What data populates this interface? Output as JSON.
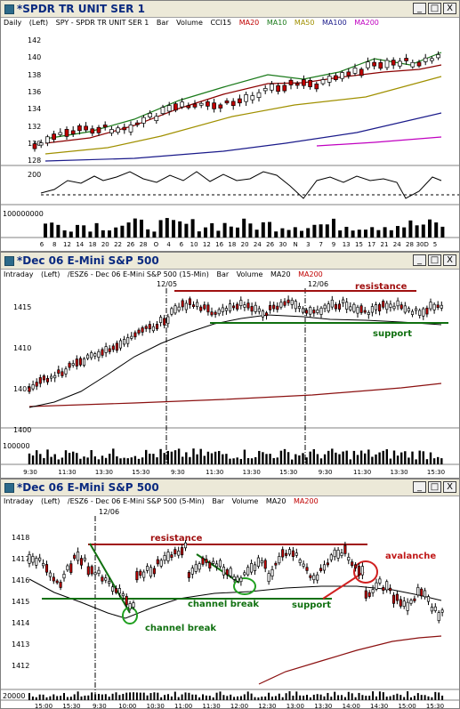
{
  "windows": [
    {
      "title": "*SPDR TR UNIT SER 1",
      "controls": {
        "minimize": "_",
        "maximize": "□",
        "close": "X"
      },
      "header": {
        "interval": "Daily",
        "axis": "(Left)",
        "symbol": "SPY - SPDR TR UNIT SER 1",
        "type": "Bar",
        "volume": "Volume",
        "ind1": "CCI15",
        "ind2": "MA20",
        "ind3": "MA10",
        "ind4": "MA50",
        "ind5": "MA100",
        "ind6": "MA200"
      },
      "price_ticks": [
        "142",
        "140",
        "138",
        "136",
        "134",
        "132",
        "130",
        "128"
      ],
      "cci_ticks": [
        "200"
      ],
      "volume_ticks": [
        "100000000"
      ],
      "date_labels": [
        "6",
        "8",
        "12",
        "14",
        "18",
        "20",
        "22",
        "26",
        "28",
        "O",
        "4",
        "6",
        "10",
        "12",
        "16",
        "18",
        "20",
        "24",
        "26",
        "30",
        "N",
        "3",
        "7",
        "9",
        "13",
        "15",
        "17",
        "21",
        "24",
        "28",
        "30D",
        "5"
      ]
    },
    {
      "title": "*Dec 06  E-Mini S&P 500",
      "controls": {
        "minimize": "_",
        "maximize": "□",
        "close": "X"
      },
      "header": {
        "interval": "Intraday",
        "axis": "(Left)",
        "symbol": "/ESZ6 - Dec 06  E-Mini S&P 500  (15-Min)",
        "type": "Bar",
        "volume": "Volume",
        "ind1": "MA20",
        "ind2": "MA200"
      },
      "price_ticks": [
        "1415",
        "1410",
        "1405",
        "1400"
      ],
      "volume_ticks": [
        "100000"
      ],
      "date_markers": [
        "12/05",
        "12/06"
      ],
      "annotations": {
        "resistance": "resistance",
        "support": "support"
      },
      "time_labels": [
        "9:30",
        "11:30",
        "13:30",
        "15:30",
        "9:30",
        "11:30",
        "13:30",
        "15:30",
        "9:30",
        "11:30",
        "13:30",
        "15:30"
      ]
    },
    {
      "title": "*Dec 06  E-Mini S&P 500",
      "controls": {
        "minimize": "_",
        "maximize": "□",
        "close": "X"
      },
      "header": {
        "interval": "Intraday",
        "axis": "(Left)",
        "symbol": "/ESZ6 - Dec 06  E-Mini S&P 500  (5-Min)",
        "type": "Bar",
        "volume": "Volume",
        "ind1": "MA20",
        "ind2": "MA200"
      },
      "price_ticks": [
        "1418",
        "1417",
        "1416",
        "1415",
        "1414",
        "1413",
        "1412"
      ],
      "volume_ticks": [
        "20000"
      ],
      "date_markers": [
        "12/06"
      ],
      "annotations": {
        "resistance": "resistance",
        "support": "support",
        "channel_break_1": "channel break",
        "channel_break_2": "channel break",
        "avalanche": "avalanche"
      },
      "time_labels": [
        "15:00",
        "15:30",
        "9:30",
        "10:00",
        "10:30",
        "11:00",
        "11:30",
        "12:00",
        "12:30",
        "13:00",
        "13:30",
        "14:00",
        "14:30",
        "15:00",
        "15:30"
      ]
    }
  ],
  "colors": {
    "up_candle": "#ffffff",
    "down_candle": "#c00000",
    "ma20": "#8b0000",
    "ma10": "#1a7a1a",
    "ma50": "#a09000",
    "ma100": "#1a1a8a",
    "ma200": "#c000c0",
    "resistance": "#a01010",
    "support": "#107010",
    "avalanche": "#d02020"
  }
}
